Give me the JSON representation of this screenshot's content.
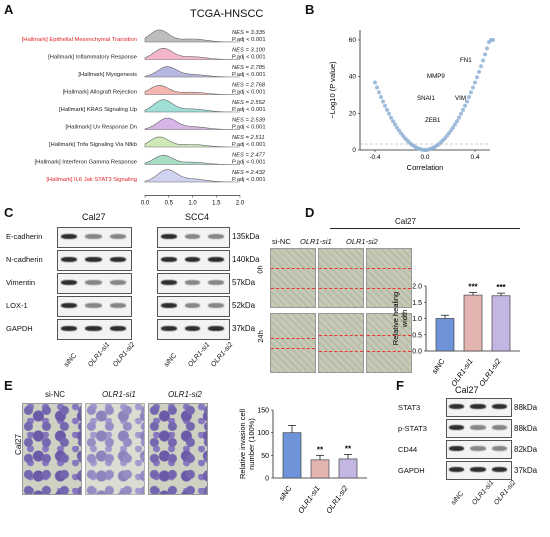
{
  "panels": {
    "a": "A",
    "b": "B",
    "c": "C",
    "d": "D",
    "e": "E",
    "f": "F"
  },
  "gsea": {
    "title": "TCGA-HNSCC",
    "rows": [
      {
        "name": "[Hallmark] Epithelial Mesenchymal Transition",
        "nes": "NES = 3.335",
        "padj": "P.adj < 0.001",
        "highlight": true,
        "color": "#bdbdbd"
      },
      {
        "name": "[Hallmark] Inflammatory Response",
        "nes": "NES = 3.100",
        "padj": "P.adj < 0.001",
        "highlight": false,
        "color": "#f3b6c8"
      },
      {
        "name": "[Hallmark] Myogenesis",
        "nes": "NES = 2.785",
        "padj": "P.adj < 0.001",
        "highlight": false,
        "color": "#b7b6e0"
      },
      {
        "name": "[Hallmark] Allograft Rejection",
        "nes": "NES = 2.768",
        "padj": "P.adj < 0.001",
        "highlight": false,
        "color": "#f6b5b0"
      },
      {
        "name": "[Hallmark] KRAS Signaling Up",
        "nes": "NES = 2.552",
        "padj": "P.adj < 0.001",
        "highlight": false,
        "color": "#9fdfd8"
      },
      {
        "name": "[Hallmark] Uv Response Dn",
        "nes": "NES = 2.539",
        "padj": "P.adj < 0.001",
        "highlight": false,
        "color": "#d7b5e6"
      },
      {
        "name": "[Hallmark] Tnfa Signaling Via Nfkb",
        "nes": "NES = 2.511",
        "padj": "P.adj < 0.001",
        "highlight": false,
        "color": "#cfe8b8"
      },
      {
        "name": "[Hallmark] Interferon Gamma Response",
        "nes": "NES = 2.477",
        "padj": "P.adj < 0.001",
        "highlight": false,
        "color": "#a9dcc3"
      },
      {
        "name": "[Hallmark] IL6 Jak STAT3 Signaling",
        "nes": "NES = 2.432",
        "padj": "P.adj < 0.001",
        "highlight": true,
        "color": "#cfd3f0"
      }
    ],
    "xticks": [
      "0.0",
      "0.5",
      "1.0",
      "1.5",
      "2.0"
    ]
  },
  "volcano": {
    "ylabel": "−Log10 (P value)",
    "xlabel": "Correlation",
    "yticks": [
      "0",
      "20",
      "40",
      "60"
    ],
    "xticks": [
      "-0.4",
      "0.0",
      "0.4"
    ],
    "genes": [
      "FN1",
      "MMP9",
      "SNAI1",
      "VIM",
      "ZEB1"
    ]
  },
  "westernC": {
    "group1": "Cal27",
    "group2": "SCC4",
    "proteins": [
      "E-cadherin",
      "N-cadherin",
      "Vimentin",
      "LOX-1",
      "GAPDH"
    ],
    "kda": [
      "135kDa",
      "140kDa",
      "57kDa",
      "52kDa",
      "37kDa"
    ],
    "lanes": [
      "siNC",
      "OLR1-si1",
      "OLR1-si2"
    ]
  },
  "scratch": {
    "group": "Cal27",
    "cols": [
      "si-NC",
      "OLR1-si1",
      "OLR1-si2"
    ],
    "rows": [
      "0h",
      "24h"
    ]
  },
  "chart_data": [
    {
      "type": "bar",
      "categories": [
        "siNC",
        "OLR1-si1",
        "OLR1-si2"
      ],
      "values": [
        1.0,
        1.72,
        1.7
      ],
      "errors": [
        0.1,
        0.08,
        0.08
      ],
      "significance": [
        "",
        "***",
        "***"
      ],
      "ylabel": "Relative healing width",
      "ylim": [
        0,
        2.0
      ],
      "yticks": [
        "0.0",
        "0.5",
        "1.0",
        "1.5",
        "2.0"
      ],
      "colors": [
        "#6f93d8",
        "#e3b4b0",
        "#c3b6e3"
      ]
    },
    {
      "type": "bar",
      "categories": [
        "siNC",
        "OLR1-si1",
        "OLR1-si2"
      ],
      "values": [
        100,
        40,
        42
      ],
      "errors": [
        16,
        10,
        10
      ],
      "significance": [
        "",
        "**",
        "**"
      ],
      "ylabel": "Relative invasion cell number (100%)",
      "ylim": [
        0,
        150
      ],
      "yticks": [
        "0",
        "50",
        "100",
        "150"
      ],
      "colors": [
        "#6f93d8",
        "#e3b4b0",
        "#c3b6e3"
      ]
    }
  ],
  "invasion": {
    "side": "Cal27",
    "cols": [
      "si-NC",
      "OLR1-si1",
      "OLR1-si2"
    ]
  },
  "westernF": {
    "group": "Cal27",
    "proteins": [
      "STAT3",
      "p-STAT3",
      "CD44",
      "GAPDH"
    ],
    "kda": [
      "88kDa",
      "88kDa",
      "82kDa",
      "37kDa"
    ],
    "lanes": [
      "siNC",
      "OLR1-si1",
      "OLR1-si2"
    ]
  }
}
